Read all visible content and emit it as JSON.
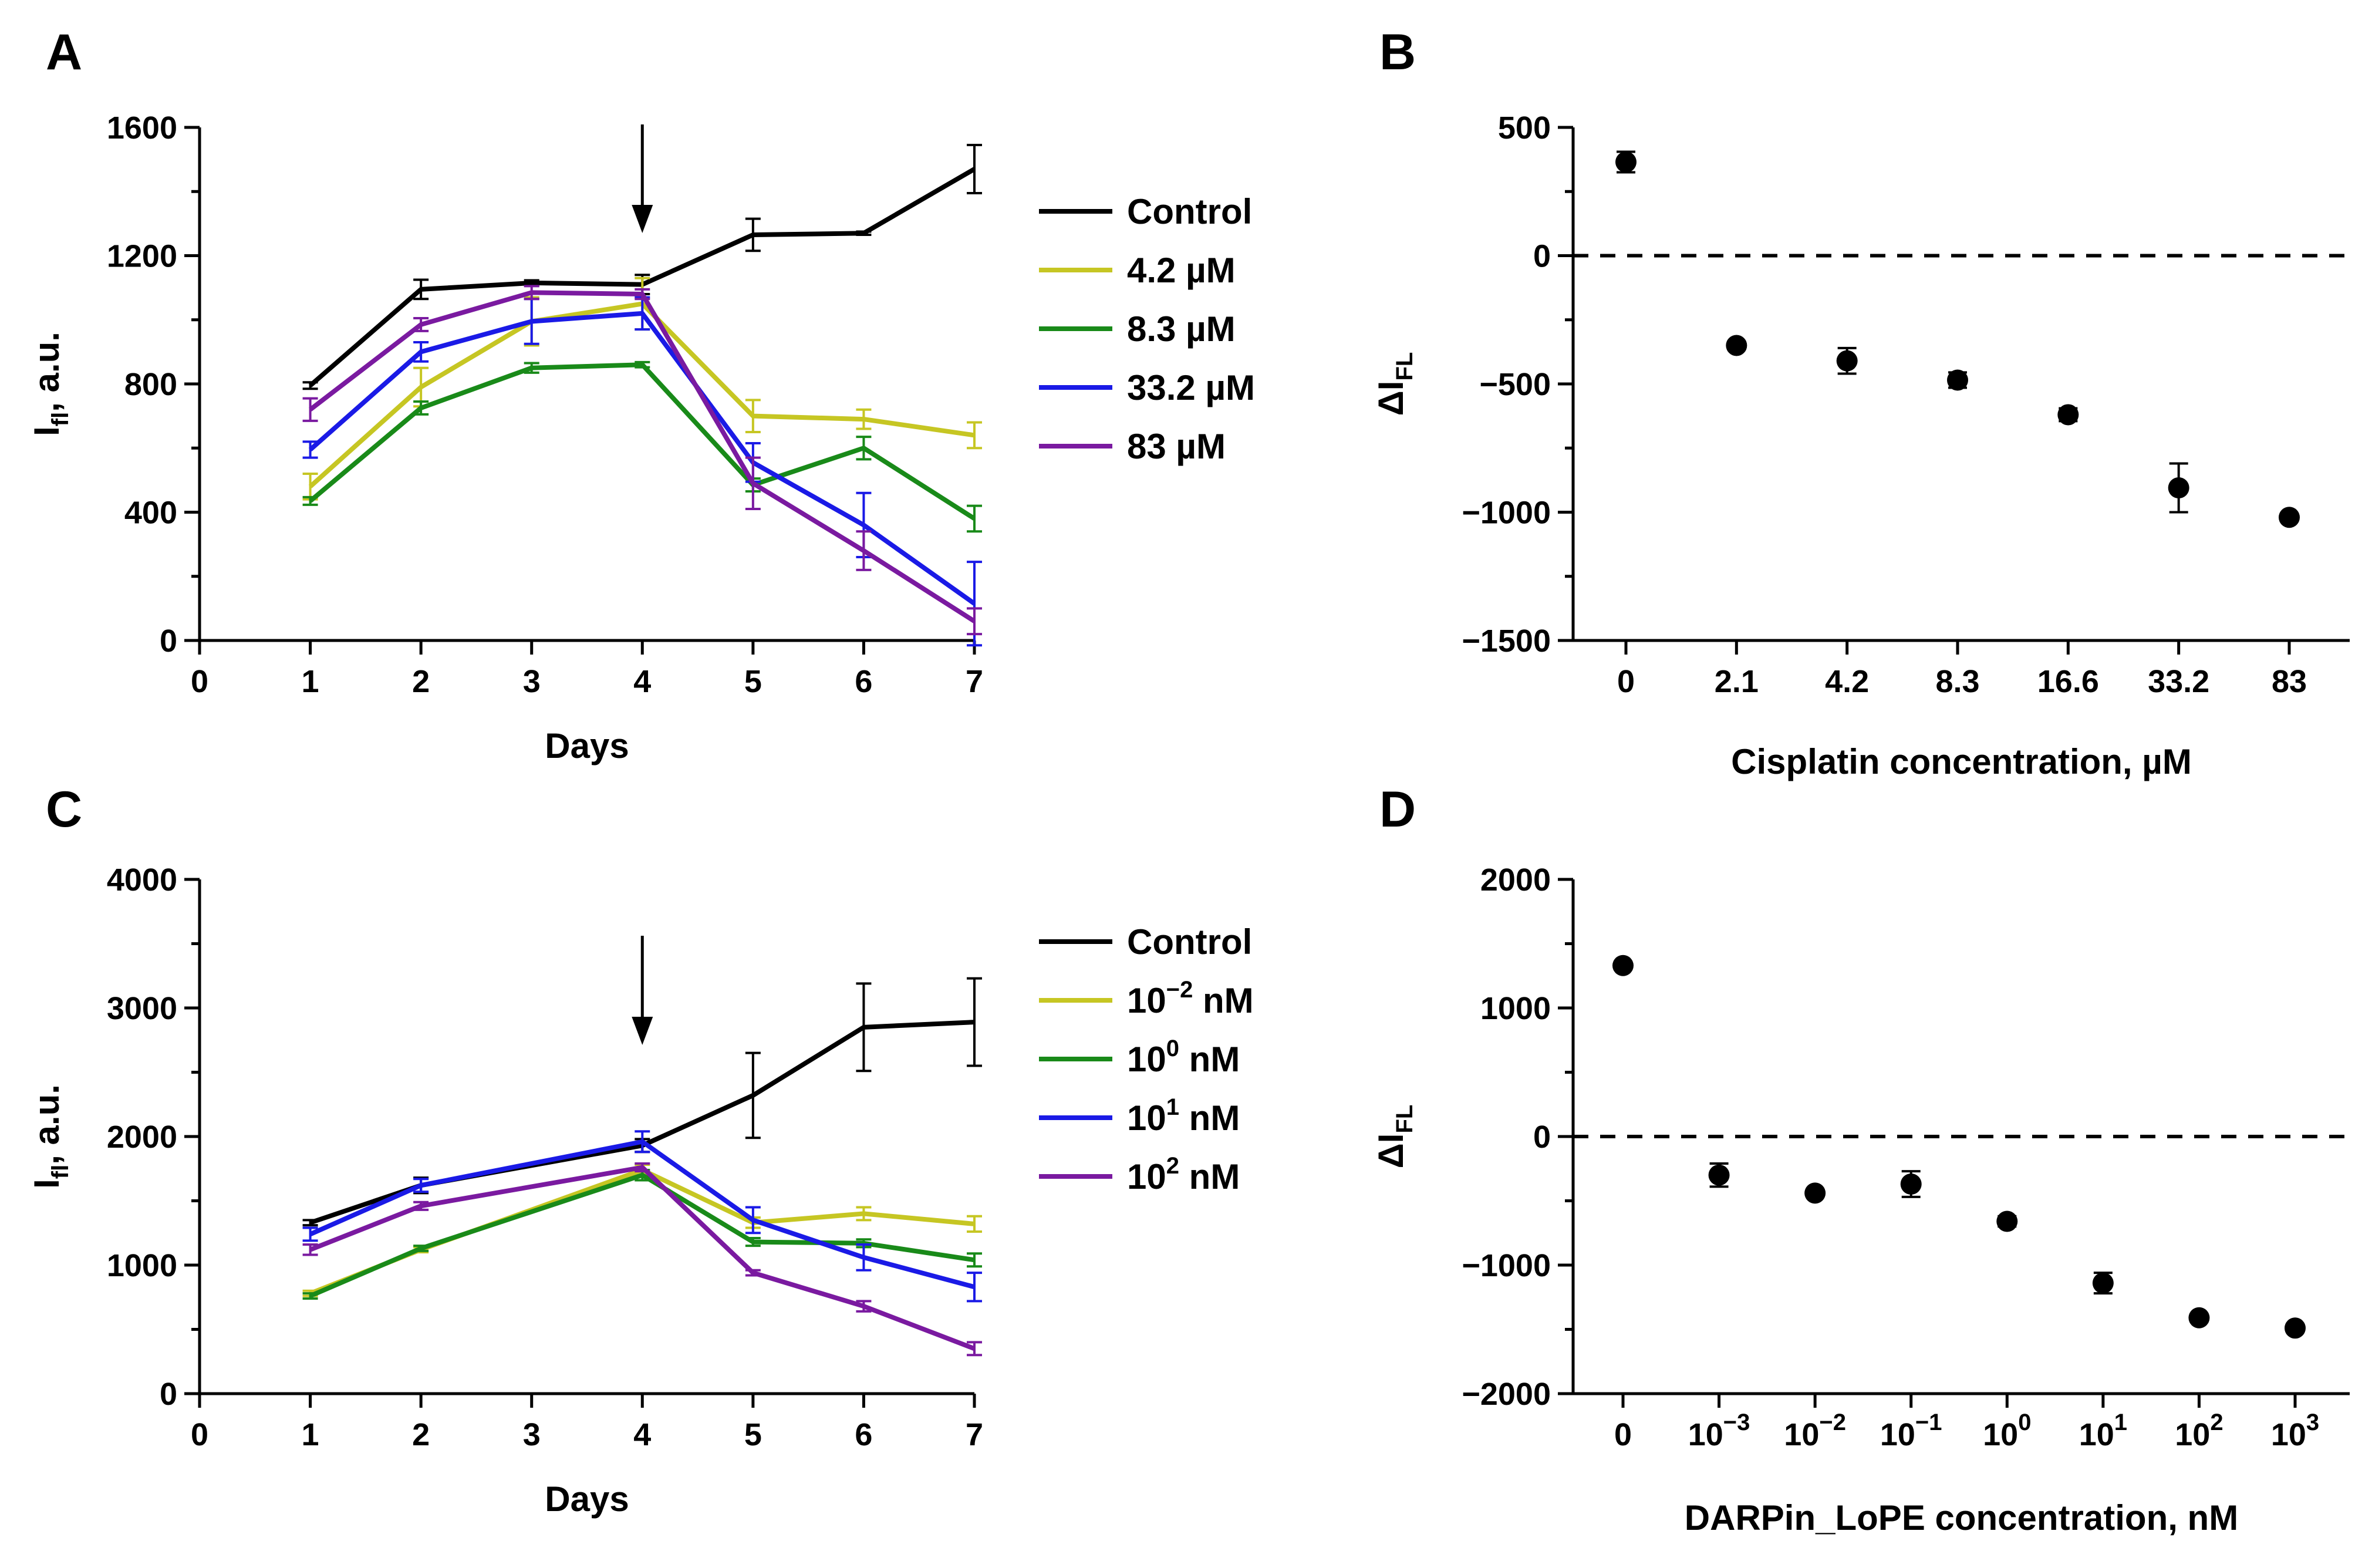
{
  "panels": [
    "A",
    "B",
    "C",
    "D"
  ],
  "chart_data": [
    {
      "id": "A",
      "type": "line",
      "xlabel": "Days",
      "ylabel_main": "I",
      "ylabel_sub": "fl",
      "ylabel_rest": ", a.u.",
      "xlim": [
        0,
        7
      ],
      "ylim": [
        0,
        1600
      ],
      "x_ticks": [
        0,
        1,
        2,
        3,
        4,
        5,
        6,
        7
      ],
      "y_ticks": [
        0,
        400,
        800,
        1200,
        1600
      ],
      "arrow_day": 4,
      "series": [
        {
          "name": "Control",
          "color": "#000000",
          "x": [
            1,
            2,
            3,
            4,
            5,
            6,
            7
          ],
          "values": [
            795,
            1095,
            1115,
            1110,
            1265,
            1270,
            1470
          ],
          "err": [
            10,
            30,
            8,
            30,
            50,
            5,
            75
          ]
        },
        {
          "name": "4.2 µM",
          "color": "#c6c623",
          "x": [
            1,
            2,
            3,
            4,
            5,
            6,
            7
          ],
          "values": [
            480,
            790,
            995,
            1050,
            700,
            690,
            640
          ],
          "err": [
            40,
            60,
            75,
            80,
            50,
            30,
            40
          ]
        },
        {
          "name": "8.3 µM",
          "color": "#198a19",
          "x": [
            1,
            2,
            3,
            4,
            5,
            6,
            7
          ],
          "values": [
            435,
            725,
            850,
            860,
            485,
            600,
            380
          ],
          "err": [
            12,
            20,
            15,
            8,
            20,
            35,
            40
          ]
        },
        {
          "name": "33.2 µM",
          "color": "#1a1ae6",
          "x": [
            1,
            2,
            3,
            4,
            5,
            6,
            7
          ],
          "values": [
            595,
            900,
            995,
            1020,
            555,
            360,
            115
          ],
          "err": [
            25,
            30,
            70,
            50,
            60,
            100,
            130
          ]
        },
        {
          "name": "83 µM",
          "color": "#7a1aa0",
          "x": [
            1,
            2,
            3,
            4,
            5,
            6,
            7
          ],
          "values": [
            720,
            985,
            1085,
            1080,
            490,
            280,
            60
          ],
          "err": [
            35,
            20,
            20,
            15,
            80,
            60,
            40
          ]
        }
      ]
    },
    {
      "id": "B",
      "type": "scatter",
      "xlabel": "Cisplatin concentration, µM",
      "ylabel_main": "ΔI",
      "ylabel_sub": "FL",
      "ylim": [
        -1500,
        500
      ],
      "y_ticks": [
        -1500,
        -1000,
        -500,
        0,
        500
      ],
      "y_tick_labels": [
        "−1500",
        "−1000",
        "−500",
        "0",
        "500"
      ],
      "categories": [
        "0",
        "2.1",
        "4.2",
        "8.3",
        "16.6",
        "33.2",
        "83"
      ],
      "values": [
        365,
        -350,
        -410,
        -485,
        -620,
        -905,
        -1020
      ],
      "err": [
        40,
        15,
        50,
        30,
        25,
        95,
        15
      ],
      "reference_line": 0
    },
    {
      "id": "C",
      "type": "line",
      "xlabel": "Days",
      "ylabel_main": "I",
      "ylabel_sub": "fl",
      "ylabel_rest": ", a.u.",
      "xlim": [
        0,
        7
      ],
      "ylim": [
        0,
        4000
      ],
      "x_ticks": [
        0,
        1,
        2,
        3,
        4,
        5,
        6,
        7
      ],
      "y_ticks": [
        0,
        1000,
        2000,
        3000,
        4000
      ],
      "arrow_day": 4,
      "series": [
        {
          "name": "Control",
          "base": "Control",
          "sup": "",
          "unit": "",
          "color": "#000000",
          "x": [
            1,
            2,
            4,
            5,
            6,
            7
          ],
          "values": [
            1330,
            1620,
            1930,
            2320,
            2850,
            2890
          ],
          "err": [
            20,
            60,
            50,
            330,
            340,
            340
          ]
        },
        {
          "name": "10−2 nM",
          "base": "10",
          "sup": "−2",
          "unit": " nM",
          "color": "#c6c623",
          "x": [
            1,
            2,
            4,
            5,
            6,
            7
          ],
          "values": [
            780,
            1120,
            1740,
            1330,
            1400,
            1320
          ],
          "err": [
            20,
            20,
            40,
            40,
            50,
            60
          ]
        },
        {
          "name": "100 nM",
          "base": "10",
          "sup": "0",
          "unit": " nM",
          "color": "#198a19",
          "x": [
            1,
            2,
            4,
            5,
            6,
            7
          ],
          "values": [
            760,
            1130,
            1700,
            1180,
            1170,
            1040
          ],
          "err": [
            20,
            20,
            40,
            30,
            30,
            50
          ]
        },
        {
          "name": "101 nM",
          "base": "10",
          "sup": "1",
          "unit": " nM",
          "color": "#1a1ae6",
          "x": [
            1,
            2,
            4,
            5,
            6,
            7
          ],
          "values": [
            1240,
            1620,
            1960,
            1350,
            1060,
            830
          ],
          "err": [
            50,
            50,
            80,
            100,
            100,
            110
          ]
        },
        {
          "name": "102 nM",
          "base": "10",
          "sup": "2",
          "unit": " nM",
          "color": "#7a1aa0",
          "x": [
            1,
            2,
            4,
            5,
            6,
            7
          ],
          "values": [
            1120,
            1460,
            1760,
            940,
            680,
            350
          ],
          "err": [
            40,
            30,
            30,
            20,
            40,
            50
          ]
        }
      ]
    },
    {
      "id": "D",
      "type": "scatter",
      "xlabel": "DARPin_LoPE concentration, nM",
      "ylabel_main": "ΔI",
      "ylabel_sub": "FL",
      "ylim": [
        -2000,
        2000
      ],
      "y_ticks": [
        -2000,
        -1000,
        0,
        1000,
        2000
      ],
      "y_tick_labels": [
        "−2000",
        "−1000",
        "0",
        "1000",
        "2000"
      ],
      "categories": [
        "0",
        "10−3",
        "10−2",
        "10−1",
        "100",
        "101",
        "102",
        "103"
      ],
      "category_base": [
        "0",
        "10",
        "10",
        "10",
        "10",
        "10",
        "10",
        "10"
      ],
      "category_sup": [
        "",
        "−3",
        "−2",
        "−1",
        "0",
        "1",
        "2",
        "3"
      ],
      "values": [
        1330,
        -300,
        -440,
        -370,
        -660,
        -1140,
        -1410,
        -1490
      ],
      "err": [
        30,
        90,
        20,
        100,
        40,
        80,
        30,
        30
      ],
      "reference_line": 0
    }
  ]
}
